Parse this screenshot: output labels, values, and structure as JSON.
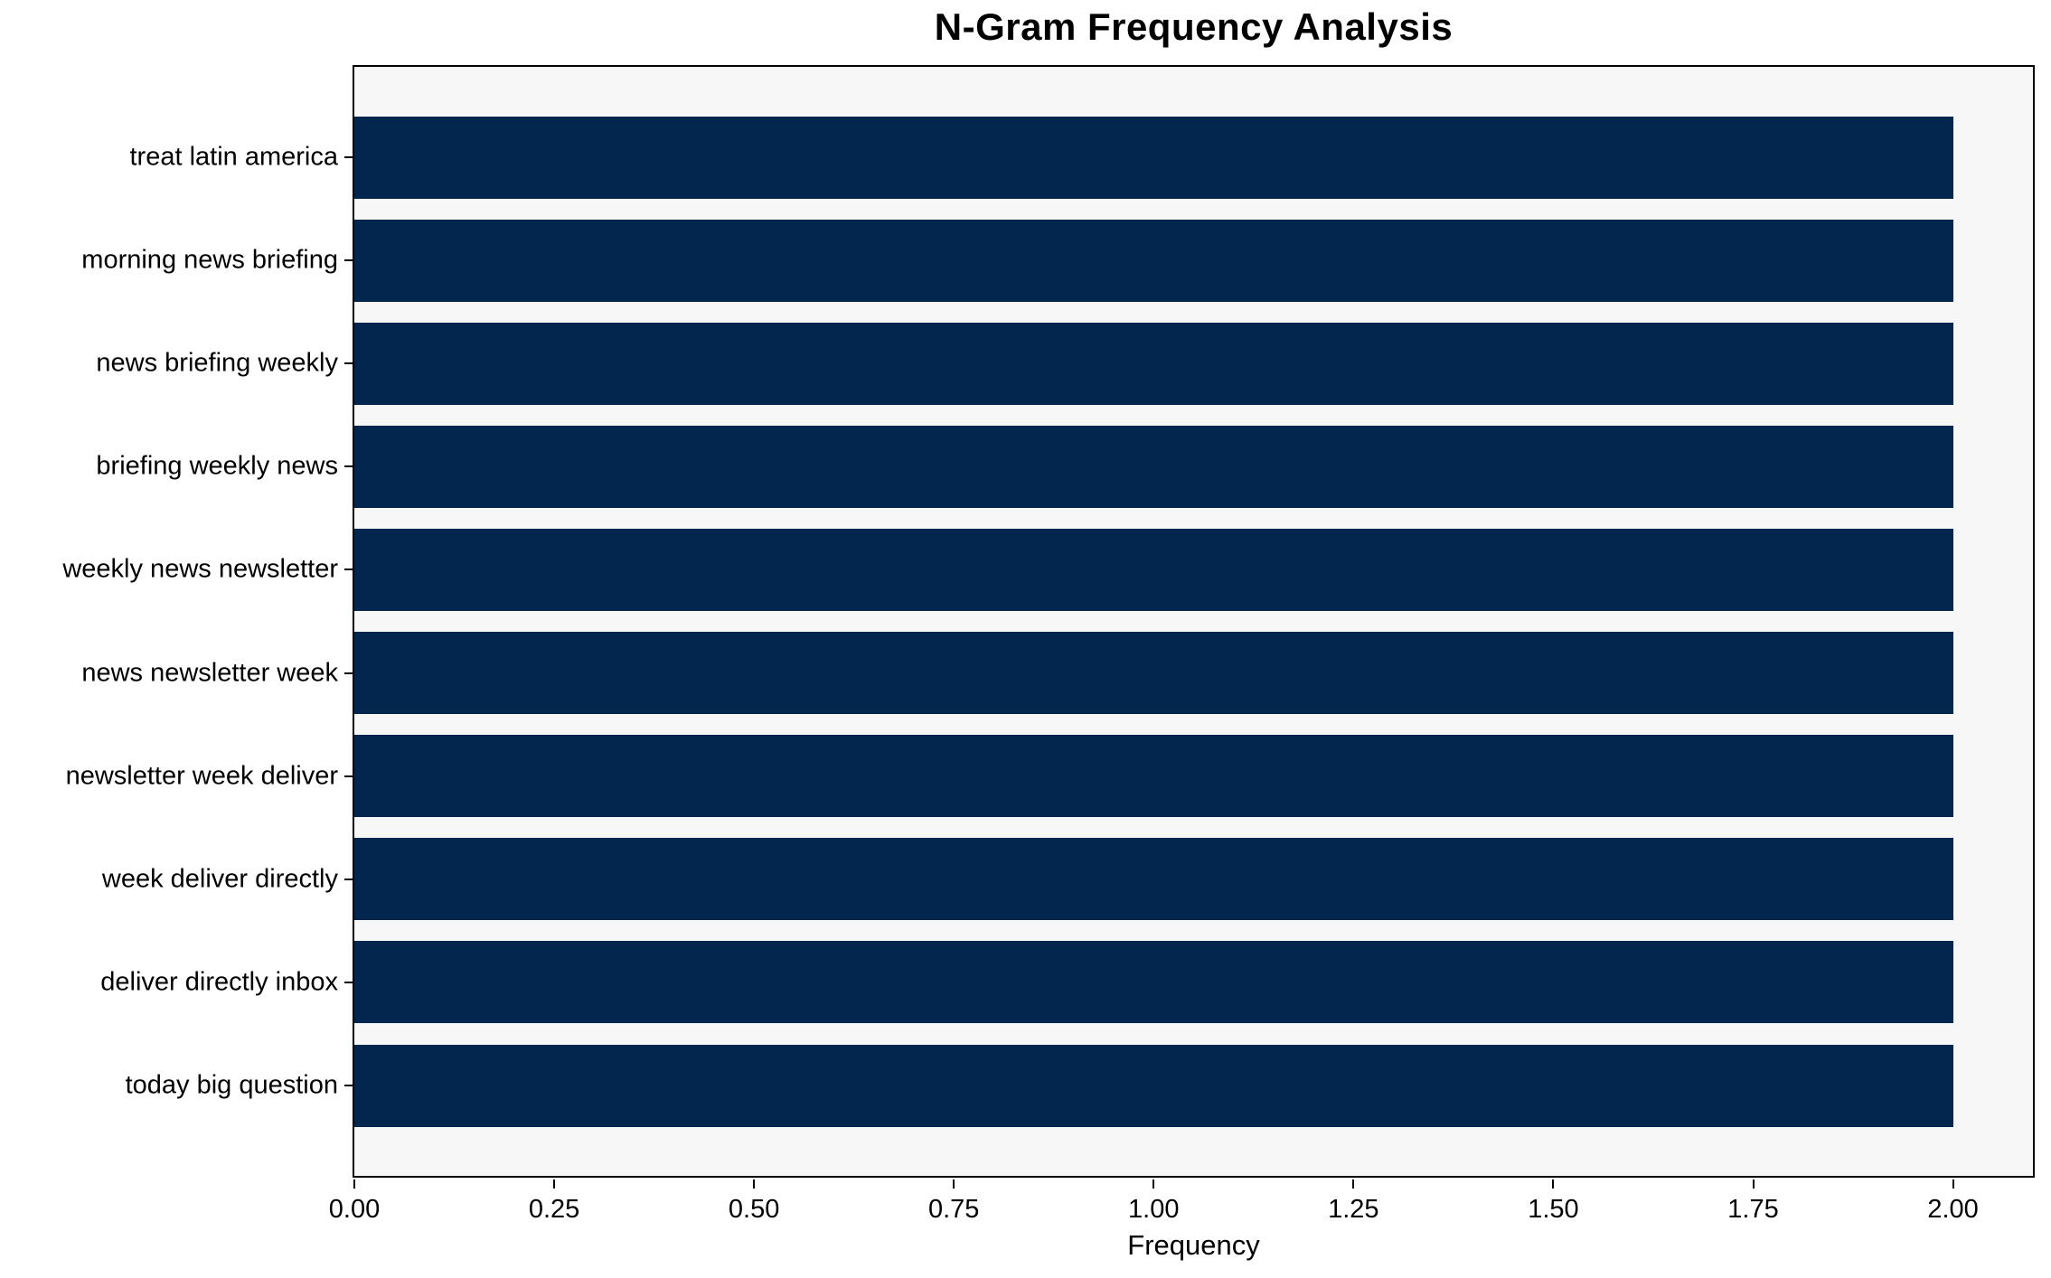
{
  "chart_data": {
    "type": "bar",
    "orientation": "horizontal",
    "title": "N-Gram Frequency Analysis",
    "xlabel": "Frequency",
    "ylabel": "",
    "categories": [
      "treat latin america",
      "morning news briefing",
      "news briefing weekly",
      "briefing weekly news",
      "weekly news newsletter",
      "news newsletter week",
      "newsletter week deliver",
      "week deliver directly",
      "deliver directly inbox",
      "today big question"
    ],
    "values": [
      2,
      2,
      2,
      2,
      2,
      2,
      2,
      2,
      2,
      2
    ],
    "xlim": [
      0,
      2.1
    ],
    "xticks": [
      {
        "value": 0.0,
        "label": "0.00"
      },
      {
        "value": 0.25,
        "label": "0.25"
      },
      {
        "value": 0.5,
        "label": "0.50"
      },
      {
        "value": 0.75,
        "label": "0.75"
      },
      {
        "value": 1.0,
        "label": "1.00"
      },
      {
        "value": 1.25,
        "label": "1.25"
      },
      {
        "value": 1.5,
        "label": "1.50"
      },
      {
        "value": 1.75,
        "label": "1.75"
      },
      {
        "value": 2.0,
        "label": "2.00"
      }
    ],
    "grid": false,
    "legend": "none",
    "colors": {
      "bar": "#02264e",
      "plot_background": "#f7f7f7",
      "figure_background": "#ffffff",
      "axis": "#000000",
      "text": "#000000"
    }
  }
}
